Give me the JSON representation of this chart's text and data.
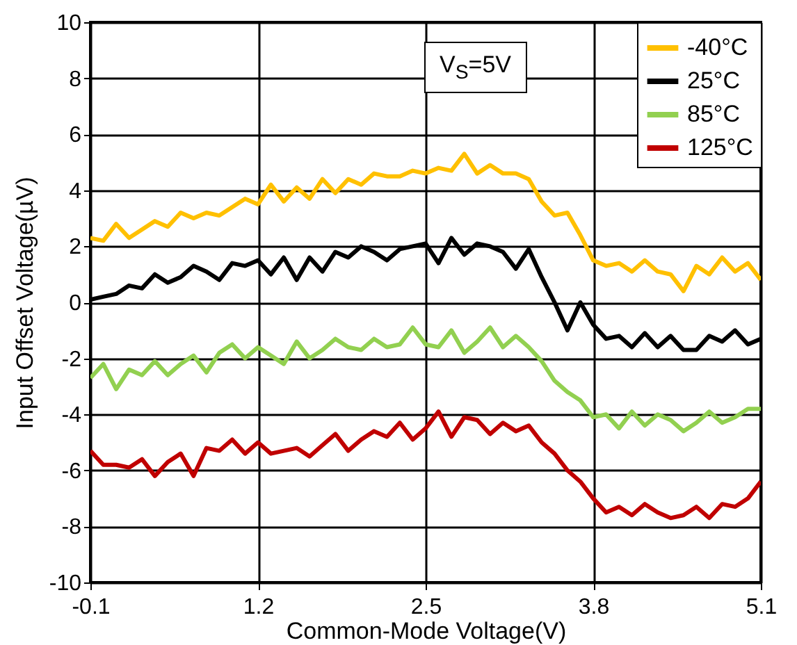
{
  "chart_data": {
    "type": "line",
    "xlabel": "Common-Mode Voltage(V)",
    "ylabel": "Input Offset Voltage(µV)",
    "annotations": [
      "V$_{S}$=5V"
    ],
    "x": [
      -0.1,
      0.0,
      0.1,
      0.2,
      0.3,
      0.4,
      0.5,
      0.6,
      0.7,
      0.8,
      0.9,
      1.0,
      1.1,
      1.2,
      1.3,
      1.4,
      1.5,
      1.6,
      1.7,
      1.8,
      1.9,
      2.0,
      2.1,
      2.2,
      2.3,
      2.4,
      2.5,
      2.6,
      2.7,
      2.8,
      2.9,
      3.0,
      3.1,
      3.2,
      3.3,
      3.4,
      3.5,
      3.6,
      3.7,
      3.8,
      3.9,
      4.0,
      4.1,
      4.2,
      4.3,
      4.4,
      4.5,
      4.6,
      4.7,
      4.8,
      4.9,
      5.0,
      5.1
    ],
    "series": [
      {
        "name": "-40°C",
        "color": "#ffc000",
        "values": [
          2.3,
          2.2,
          2.8,
          2.3,
          2.6,
          2.9,
          2.7,
          3.2,
          3.0,
          3.2,
          3.1,
          3.4,
          3.7,
          3.5,
          4.2,
          3.6,
          4.1,
          3.7,
          4.4,
          3.9,
          4.4,
          4.2,
          4.6,
          4.5,
          4.5,
          4.7,
          4.6,
          4.8,
          4.7,
          5.3,
          4.6,
          4.9,
          4.6,
          4.6,
          4.4,
          3.6,
          3.1,
          3.2,
          2.4,
          1.5,
          1.3,
          1.4,
          1.1,
          1.5,
          1.1,
          1.0,
          0.4,
          1.3,
          1.0,
          1.6,
          1.1,
          1.4,
          0.8
        ]
      },
      {
        "name": "25°C",
        "color": "#000000",
        "values": [
          0.1,
          0.2,
          0.3,
          0.6,
          0.5,
          1.0,
          0.7,
          0.9,
          1.3,
          1.1,
          0.8,
          1.4,
          1.3,
          1.5,
          1.0,
          1.6,
          0.8,
          1.6,
          1.1,
          1.8,
          1.6,
          2.0,
          1.8,
          1.5,
          1.9,
          2.0,
          2.1,
          1.4,
          2.3,
          1.7,
          2.1,
          2.0,
          1.8,
          1.2,
          1.9,
          0.9,
          0.0,
          -1.0,
          0.0,
          -0.8,
          -1.3,
          -1.2,
          -1.6,
          -1.1,
          -1.6,
          -1.2,
          -1.7,
          -1.7,
          -1.2,
          -1.4,
          -1.0,
          -1.5,
          -1.3
        ]
      },
      {
        "name": "85°C",
        "color": "#92d050",
        "values": [
          -2.7,
          -2.2,
          -3.1,
          -2.4,
          -2.6,
          -2.1,
          -2.6,
          -2.2,
          -1.9,
          -2.5,
          -1.8,
          -1.5,
          -2.0,
          -1.6,
          -1.9,
          -2.2,
          -1.4,
          -2.0,
          -1.7,
          -1.3,
          -1.6,
          -1.7,
          -1.3,
          -1.6,
          -1.5,
          -0.9,
          -1.5,
          -1.6,
          -1.0,
          -1.8,
          -1.4,
          -0.9,
          -1.6,
          -1.2,
          -1.6,
          -2.1,
          -2.8,
          -3.2,
          -3.5,
          -4.1,
          -4.0,
          -4.5,
          -3.9,
          -4.4,
          -4.0,
          -4.2,
          -4.6,
          -4.3,
          -3.9,
          -4.3,
          -4.1,
          -3.8,
          -3.8
        ]
      },
      {
        "name": "125°C",
        "color": "#c00000",
        "values": [
          -5.3,
          -5.8,
          -5.8,
          -5.9,
          -5.6,
          -6.2,
          -5.7,
          -5.4,
          -6.2,
          -5.2,
          -5.3,
          -4.9,
          -5.4,
          -5.0,
          -5.4,
          -5.3,
          -5.2,
          -5.5,
          -5.1,
          -4.7,
          -5.3,
          -4.9,
          -4.6,
          -4.8,
          -4.3,
          -4.9,
          -4.5,
          -3.9,
          -4.8,
          -4.1,
          -4.2,
          -4.7,
          -4.3,
          -4.6,
          -4.4,
          -5.0,
          -5.4,
          -6.0,
          -6.4,
          -7.0,
          -7.5,
          -7.3,
          -7.6,
          -7.2,
          -7.5,
          -7.7,
          -7.6,
          -7.3,
          -7.7,
          -7.2,
          -7.3,
          -7.0,
          -6.4
        ]
      }
    ],
    "xlim": [
      -0.1,
      5.1
    ],
    "xticks": [
      -0.1,
      1.2,
      2.5,
      3.8,
      5.1
    ],
    "ylim": [
      -10,
      10
    ],
    "yticks": [
      -10,
      -8,
      -6,
      -4,
      -2,
      0,
      2,
      4,
      6,
      8,
      10
    ],
    "grid": true,
    "legend": "top right",
    "marker": "none",
    "line_style": "solid"
  }
}
